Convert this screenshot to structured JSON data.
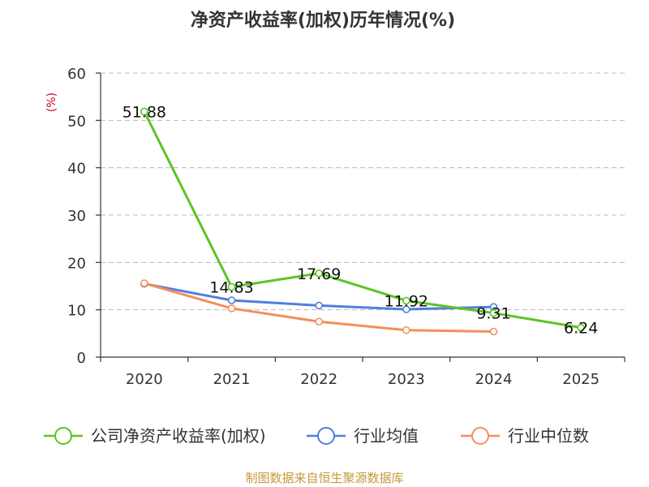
{
  "chart_data": {
    "type": "line",
    "title": "净资产收益率(加权)历年情况(%)",
    "ylabel": "(%)",
    "xlabel": "",
    "categories": [
      "2020",
      "2021",
      "2022",
      "2023",
      "2024",
      "2025"
    ],
    "ylim": [
      0,
      60
    ],
    "yticks": [
      0,
      10,
      20,
      30,
      40,
      50,
      60
    ],
    "grid": true,
    "legend_position": "bottom",
    "series": [
      {
        "name": "公司净资产收益率(加权)",
        "color": "#5cc424",
        "values": [
          51.88,
          14.83,
          17.69,
          11.92,
          9.31,
          6.24
        ],
        "labels": [
          "51.88",
          "14.83",
          "17.69",
          "11.92",
          "9.31",
          "6.24"
        ]
      },
      {
        "name": "行业均值",
        "color": "#4f7fdc",
        "values": [
          15.5,
          12.0,
          10.9,
          10.1,
          10.6,
          null
        ]
      },
      {
        "name": "行业中位数",
        "color": "#f48f5a",
        "values": [
          15.6,
          10.3,
          7.5,
          5.7,
          5.4,
          null
        ]
      }
    ],
    "source": "制图数据来自恒生聚源数据库",
    "source_color": "#c49a3a",
    "unit_color": "#d0021b"
  }
}
